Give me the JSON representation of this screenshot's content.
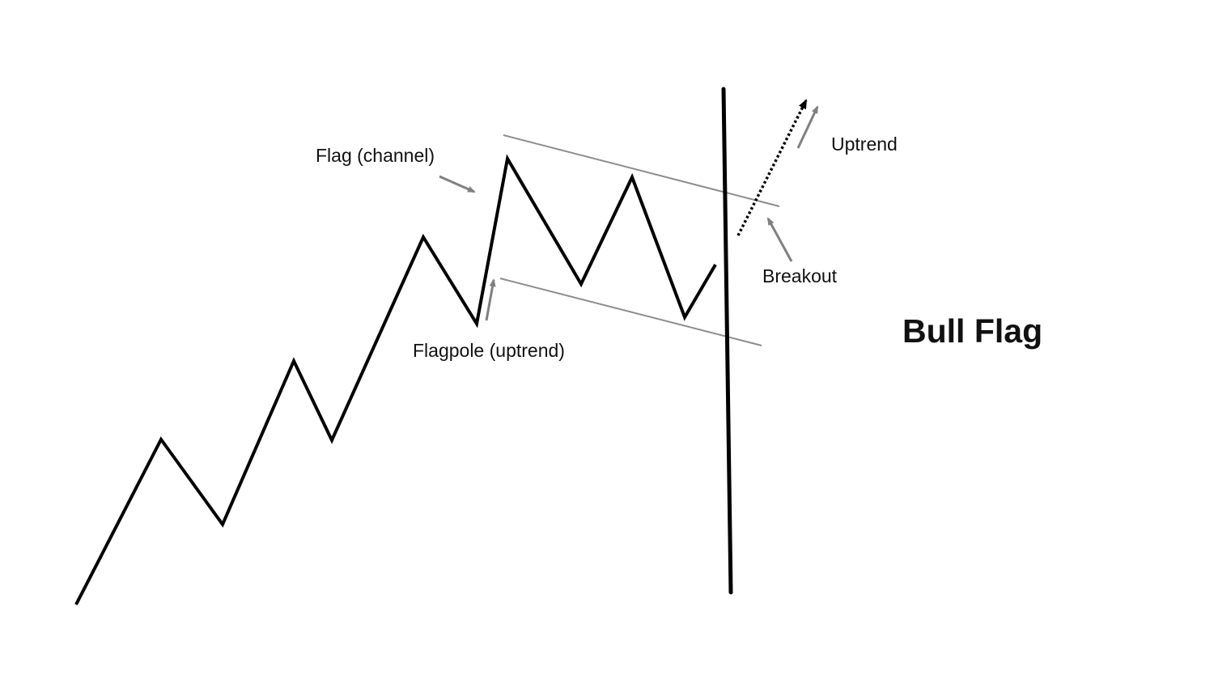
{
  "diagram": {
    "title": "Bull Flag",
    "annotations": {
      "flag": "Flag (channel)",
      "flagpole": "Flagpole (uptrend)",
      "breakout": "Breakout",
      "uptrend": "Uptrend"
    },
    "colors": {
      "price_line": "#000000",
      "channel_lines": "#8c8c8c",
      "arrows": "#808080"
    }
  }
}
